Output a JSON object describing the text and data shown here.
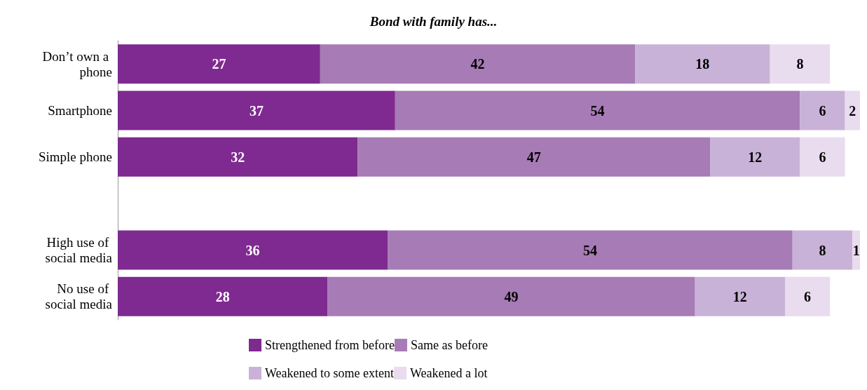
{
  "chart_data": {
    "type": "bar",
    "orientation": "horizontal",
    "stacked": true,
    "title": "Bond with family has...",
    "categories": [
      "Don’t own a phone",
      "Smartphone",
      "Simple phone",
      null,
      "High use of social media",
      "No use of social media"
    ],
    "series": [
      {
        "name": "Strengthened from before",
        "color": "#7f2a90",
        "values": [
          27,
          37,
          32,
          null,
          36,
          28
        ]
      },
      {
        "name": "Same as before",
        "color": "#a77bb5",
        "values": [
          42,
          54,
          47,
          null,
          54,
          49
        ]
      },
      {
        "name": "Weakened to some extent",
        "color": "#c9b2d7",
        "values": [
          18,
          6,
          12,
          null,
          8,
          12
        ]
      },
      {
        "name": "Weakened a lot",
        "color": "#e8dcee",
        "values": [
          8,
          2,
          6,
          null,
          1,
          6
        ]
      }
    ],
    "data_labels": true,
    "legend": "bottom",
    "tick_labels": "y"
  }
}
